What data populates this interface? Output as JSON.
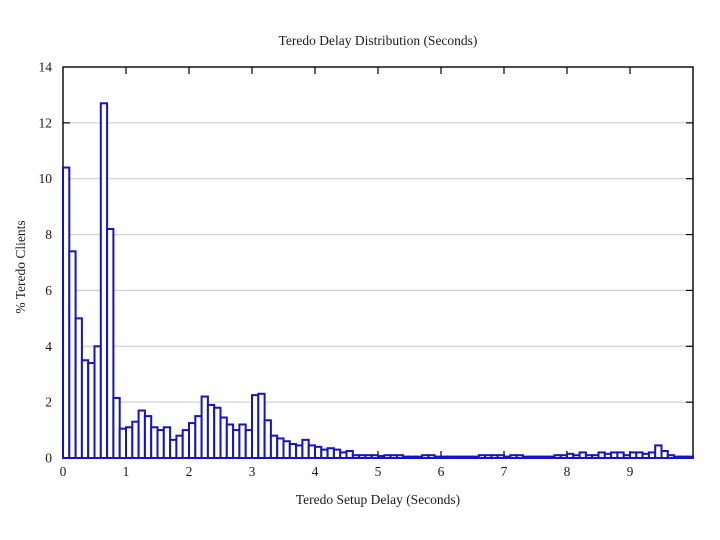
{
  "chart_data": {
    "type": "bar",
    "title": "Teredo Delay Distribution (Seconds)",
    "xlabel": "Teredo Setup Delay (Seconds)",
    "ylabel": "% Teredo Clients",
    "xlim": [
      0,
      10
    ],
    "ylim": [
      0,
      14
    ],
    "x_ticks": [
      0,
      1,
      2,
      3,
      4,
      5,
      6,
      7,
      8,
      9
    ],
    "y_ticks": [
      0,
      2,
      4,
      6,
      8,
      10,
      12,
      14
    ],
    "grid": "horizontal-gridlines-on",
    "legend": "none",
    "bin_width": 0.1,
    "bin_start": 0,
    "bar_outline_color": "#1212cf",
    "bar_fill_color": "#ffffff",
    "grid_color": "#c9c9c9",
    "axis_color": "#000000",
    "values": [
      10.4,
      7.4,
      5.0,
      3.5,
      3.4,
      4.0,
      12.7,
      8.2,
      2.15,
      1.05,
      1.1,
      1.3,
      1.7,
      1.5,
      1.1,
      1.0,
      1.1,
      0.65,
      0.8,
      1.0,
      1.25,
      1.5,
      2.2,
      1.9,
      1.8,
      1.45,
      1.2,
      1.0,
      1.2,
      1.0,
      2.25,
      2.3,
      1.35,
      0.8,
      0.7,
      0.6,
      0.5,
      0.45,
      0.65,
      0.45,
      0.4,
      0.3,
      0.35,
      0.3,
      0.2,
      0.25,
      0.1,
      0.1,
      0.1,
      0.1,
      0.07,
      0.1,
      0.1,
      0.1,
      0.05,
      0.05,
      0.05,
      0.1,
      0.1,
      0.05,
      0.05,
      0.05,
      0.05,
      0.05,
      0.05,
      0.05,
      0.1,
      0.1,
      0.1,
      0.1,
      0.05,
      0.1,
      0.1,
      0.05,
      0.05,
      0.05,
      0.05,
      0.05,
      0.1,
      0.1,
      0.15,
      0.1,
      0.2,
      0.1,
      0.1,
      0.2,
      0.15,
      0.2,
      0.2,
      0.1,
      0.2,
      0.2,
      0.15,
      0.2,
      0.45,
      0.25,
      0.1,
      0.05,
      0.05,
      0.05
    ]
  }
}
